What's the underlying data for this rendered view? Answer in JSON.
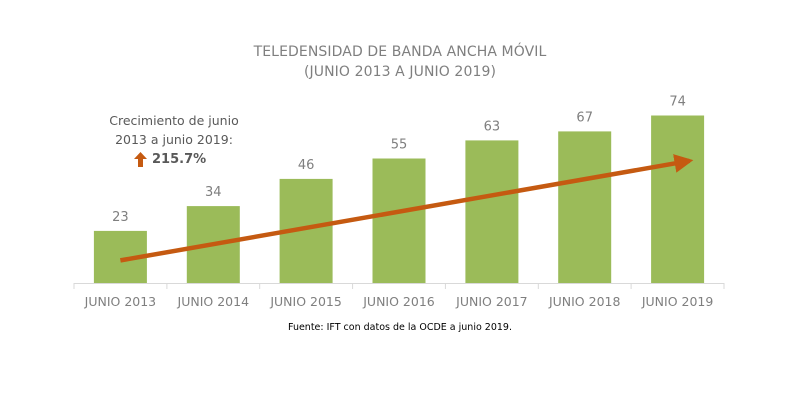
{
  "chart_data": {
    "type": "bar",
    "title": "TELEDENSIDAD DE BANDA ANCHA MÓVIL",
    "subtitle": "(JUNIO 2013 A JUNIO 2019)",
    "categories": [
      "JUNIO 2013",
      "JUNIO 2014",
      "JUNIO 2015",
      "JUNIO 2016",
      "JUNIO 2017",
      "JUNIO 2018",
      "JUNIO 2019"
    ],
    "values": [
      23,
      34,
      46,
      55,
      63,
      67,
      74
    ],
    "data_labels": [
      "23",
      "34",
      "46",
      "55",
      "63",
      "67",
      "74"
    ],
    "ylim": [
      0,
      95
    ],
    "grid": false,
    "bar_color": "#9bbb59",
    "trend_arrow": {
      "from_value": 10,
      "to_value": 54,
      "color": "#c55a11"
    }
  },
  "annotation": {
    "line1": "Crecimiento de junio",
    "line2": "2013 a junio 2019:",
    "value": "215.7%",
    "arrow_color": "#c55a11"
  },
  "footnote": "Fuente: IFT con datos de la OCDE a junio 2019."
}
